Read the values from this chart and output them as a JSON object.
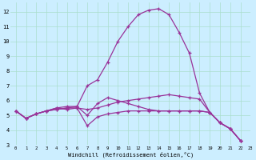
{
  "xlabel": "Windchill (Refroidissement éolien,°C)",
  "bg_color": "#cceeff",
  "line_color": "#993399",
  "marker": "+",
  "xlim": [
    -0.5,
    23
  ],
  "ylim": [
    3,
    12.6
  ],
  "xticks": [
    0,
    1,
    2,
    3,
    4,
    5,
    6,
    7,
    8,
    9,
    10,
    11,
    12,
    13,
    14,
    15,
    16,
    17,
    18,
    19,
    20,
    21,
    22,
    23
  ],
  "yticks": [
    3,
    4,
    5,
    6,
    7,
    8,
    9,
    10,
    11,
    12
  ],
  "series": [
    {
      "x": [
        0,
        1,
        2,
        3,
        4,
        5,
        6,
        7,
        8,
        9,
        10,
        11,
        12,
        13,
        14,
        15,
        16,
        17,
        18,
        19,
        20,
        21,
        22
      ],
      "y": [
        5.3,
        4.8,
        5.1,
        5.3,
        5.4,
        5.5,
        5.6,
        7.0,
        7.4,
        8.6,
        10.0,
        11.0,
        11.8,
        12.1,
        12.2,
        11.8,
        10.6,
        9.2,
        6.5,
        5.2,
        4.5,
        4.1,
        3.3
      ]
    },
    {
      "x": [
        0,
        1,
        2,
        3,
        4,
        5,
        6,
        7,
        8,
        9,
        10,
        11,
        12,
        13,
        14,
        15,
        16,
        17,
        18,
        19,
        20,
        21,
        22
      ],
      "y": [
        5.3,
        4.8,
        5.1,
        5.3,
        5.4,
        5.5,
        5.5,
        5.4,
        5.5,
        5.7,
        5.9,
        6.0,
        6.1,
        6.2,
        6.3,
        6.4,
        6.3,
        6.2,
        6.1,
        5.2,
        4.5,
        4.1,
        3.3
      ]
    },
    {
      "x": [
        0,
        1,
        2,
        3,
        4,
        5,
        6,
        7,
        8,
        9,
        10,
        11,
        12,
        13,
        14,
        15,
        16,
        17,
        18,
        19,
        20,
        21,
        22
      ],
      "y": [
        5.3,
        4.8,
        5.1,
        5.3,
        5.5,
        5.4,
        5.5,
        4.3,
        4.9,
        5.1,
        5.2,
        5.3,
        5.3,
        5.3,
        5.3,
        5.3,
        5.3,
        5.3,
        5.3,
        5.2,
        4.5,
        4.1,
        3.3
      ]
    },
    {
      "x": [
        0,
        1,
        2,
        3,
        4,
        5,
        6,
        7,
        8,
        9,
        10,
        11,
        12,
        13,
        14,
        15,
        16,
        17,
        18,
        19,
        20,
        21,
        22
      ],
      "y": [
        5.3,
        4.8,
        5.1,
        5.3,
        5.5,
        5.6,
        5.6,
        5.0,
        5.8,
        6.2,
        6.0,
        5.8,
        5.6,
        5.4,
        5.3,
        5.3,
        5.3,
        5.3,
        5.3,
        5.2,
        4.5,
        4.1,
        3.3
      ]
    }
  ]
}
